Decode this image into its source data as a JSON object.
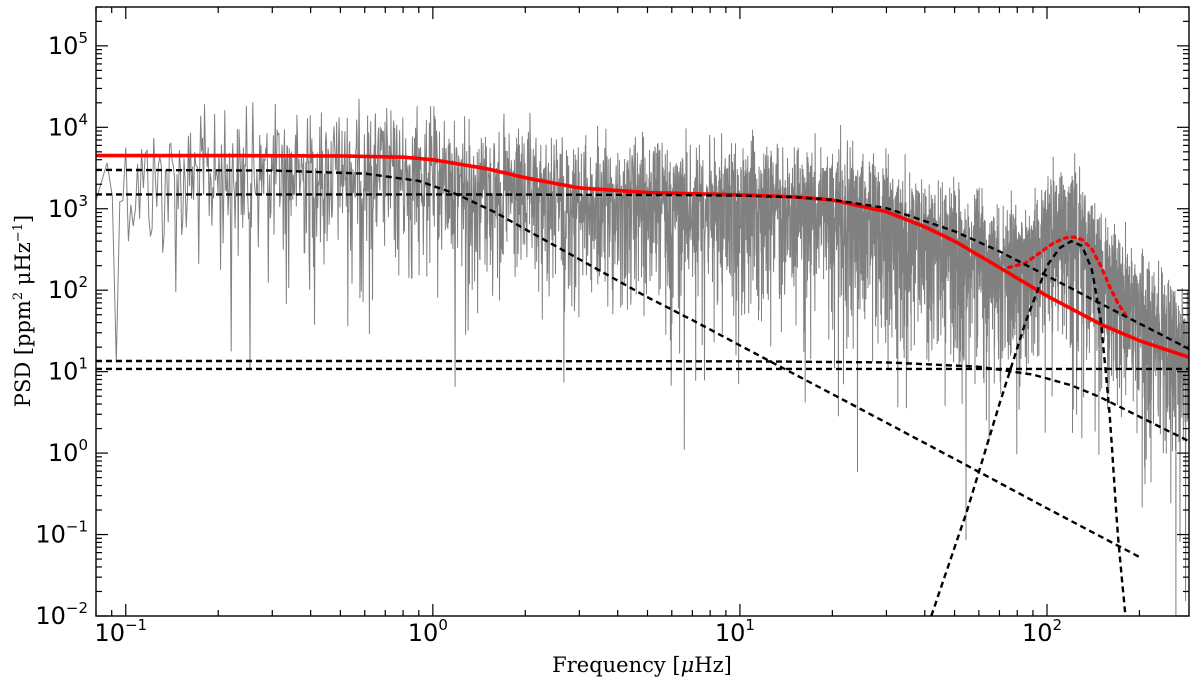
{
  "chart_data": {
    "type": "line",
    "title": "",
    "xlabel": {
      "pre": "Frequency [",
      "mu": "μ",
      "post": "Hz]"
    },
    "ylabel": {
      "p1": "PSD [ppm",
      "sup1": "2",
      "p2": " μHz",
      "sup2": "−1",
      "p3": "]"
    },
    "x_scale": "log",
    "y_scale": "log",
    "xlim": [
      0.08,
      290
    ],
    "ylim": [
      0.01,
      300000
    ],
    "x_ticks": [
      {
        "value": 0.1,
        "base": "10",
        "exp": "−1"
      },
      {
        "value": 1,
        "base": "10",
        "exp": "0"
      },
      {
        "value": 10,
        "base": "10",
        "exp": "1"
      },
      {
        "value": 100,
        "base": "10",
        "exp": "2"
      }
    ],
    "y_ticks": [
      {
        "value": 0.01,
        "base": "10",
        "exp": "−2"
      },
      {
        "value": 0.1,
        "base": "10",
        "exp": "−1"
      },
      {
        "value": 1,
        "base": "10",
        "exp": "0"
      },
      {
        "value": 10,
        "base": "10",
        "exp": "1"
      },
      {
        "value": 100,
        "base": "10",
        "exp": "2"
      },
      {
        "value": 1000,
        "base": "10",
        "exp": "3"
      },
      {
        "value": 10000,
        "base": "10",
        "exp": "4"
      },
      {
        "value": 100000,
        "base": "10",
        "exp": "5"
      }
    ],
    "grid": false,
    "colors": {
      "spectrum": "#808080",
      "fit": "#ff0000",
      "components": "#000000"
    },
    "series": [
      {
        "style": "gray-thin",
        "x": [
          0.08,
          0.1,
          0.15,
          0.2,
          0.3,
          0.5,
          0.7,
          1,
          1.5,
          2,
          3,
          5,
          7,
          10,
          15,
          20,
          30,
          50,
          70,
          90,
          100,
          120,
          150,
          200,
          290
        ],
        "y": [
          3000,
          3200,
          3500,
          3800,
          4000,
          4200,
          4000,
          3500,
          2600,
          2100,
          1700,
          1550,
          1500,
          1450,
          1400,
          1300,
          1000,
          450,
          250,
          300,
          700,
          900,
          250,
          60,
          20
        ]
      },
      {
        "style": "red-solid",
        "x": [
          0.08,
          0.1,
          0.2,
          0.5,
          0.8,
          1,
          1.5,
          2,
          3,
          5,
          7,
          10,
          15,
          20,
          30,
          40,
          50,
          70,
          100,
          150,
          200,
          290
        ],
        "y": [
          4500,
          4500,
          4500,
          4450,
          4300,
          4000,
          3100,
          2400,
          1800,
          1580,
          1530,
          1480,
          1400,
          1280,
          920,
          600,
          400,
          190,
          85,
          38,
          24,
          15
        ]
      },
      {
        "style": "red-dotted",
        "x": [
          75,
          85,
          95,
          105,
          115,
          122,
          130,
          140,
          150,
          160,
          170,
          180
        ],
        "y": [
          190,
          215,
          290,
          380,
          440,
          450,
          420,
          320,
          195,
          110,
          70,
          50
        ]
      },
      {
        "style": "black-dashed",
        "x": [
          0.08,
          0.3,
          0.6,
          0.9,
          1.2,
          1.6,
          2,
          3,
          5,
          7,
          10,
          20,
          50,
          100,
          200
        ],
        "y": [
          3000,
          2950,
          2700,
          2200,
          1500,
          900,
          560,
          240,
          82,
          43,
          21,
          5.3,
          0.85,
          0.21,
          0.053
        ]
      },
      {
        "style": "black-dashed",
        "x": [
          0.08,
          1,
          5,
          10,
          15,
          20,
          30,
          50,
          70,
          100,
          150,
          200,
          290
        ],
        "y": [
          1500,
          1500,
          1480,
          1450,
          1390,
          1290,
          1020,
          530,
          300,
          150,
          68,
          39,
          19
        ]
      },
      {
        "style": "black-dashed",
        "x": [
          0.08,
          1,
          10,
          30,
          60,
          90,
          120,
          150,
          200,
          290
        ],
        "y": [
          13.5,
          13.5,
          13.4,
          13,
          11.5,
          9.2,
          6.8,
          4.8,
          2.8,
          1.4
        ]
      },
      {
        "style": "black-dashed",
        "x": [
          0.08,
          1,
          10,
          100,
          290
        ],
        "y": [
          10.8,
          10.8,
          10.8,
          10.8,
          10.8
        ]
      },
      {
        "style": "black-dashed",
        "x": [
          42,
          55,
          70,
          85,
          100,
          110,
          120,
          130,
          140,
          150,
          160,
          170,
          180,
          190
        ],
        "y": [
          0.01,
          0.2,
          4,
          40,
          200,
          330,
          400,
          350,
          180,
          40,
          3,
          0.1,
          0.01,
          0.001
        ]
      }
    ]
  }
}
